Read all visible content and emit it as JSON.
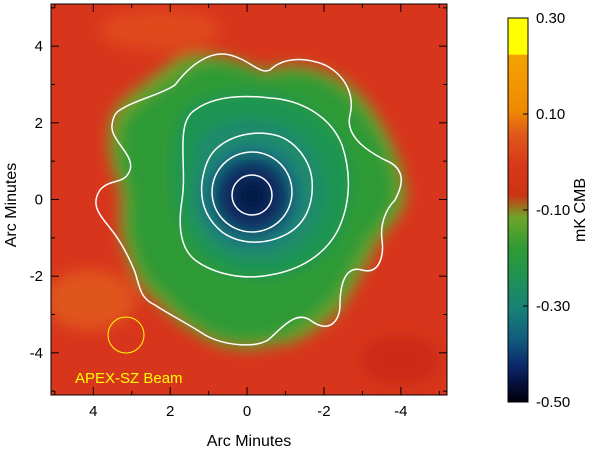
{
  "chart_data": {
    "type": "heatmap",
    "xlabel": "Arc Minutes",
    "ylabel": "Arc Minutes",
    "xlim": [
      5.1,
      -5.2
    ],
    "ylim": [
      -5.1,
      5.1
    ],
    "x_ticks": [
      4,
      2,
      0,
      -2,
      -4
    ],
    "x_tick_labels": [
      "4",
      "2",
      "0",
      "-2",
      "-4"
    ],
    "y_ticks": [
      4,
      2,
      0,
      -2,
      -4
    ],
    "y_tick_labels": [
      "4",
      "2",
      "0",
      "-2",
      "-4"
    ],
    "center": [
      -0.2,
      0.3
    ],
    "colorbar": {
      "label": "mK CMB",
      "range": [
        -0.5,
        0.3
      ],
      "ticks": [
        0.3,
        0.1,
        -0.1,
        -0.3,
        -0.5
      ],
      "tick_labels": [
        "0.30",
        "0.10",
        "-0.10",
        "-0.30",
        "-0.50"
      ]
    },
    "contours": [
      {
        "level": "outer",
        "color": "#ffffff"
      },
      {
        "level": "2",
        "color": "#ffffff"
      },
      {
        "level": "3",
        "color": "#ffffff"
      },
      {
        "level": "4",
        "color": "#ffffff"
      },
      {
        "level": "inner",
        "color": "#ffffff"
      }
    ],
    "beam": {
      "label": "APEX-SZ Beam",
      "center": [
        3.1,
        -3.3
      ],
      "radius_arcmin": 0.5,
      "color": "#ffff00"
    }
  }
}
